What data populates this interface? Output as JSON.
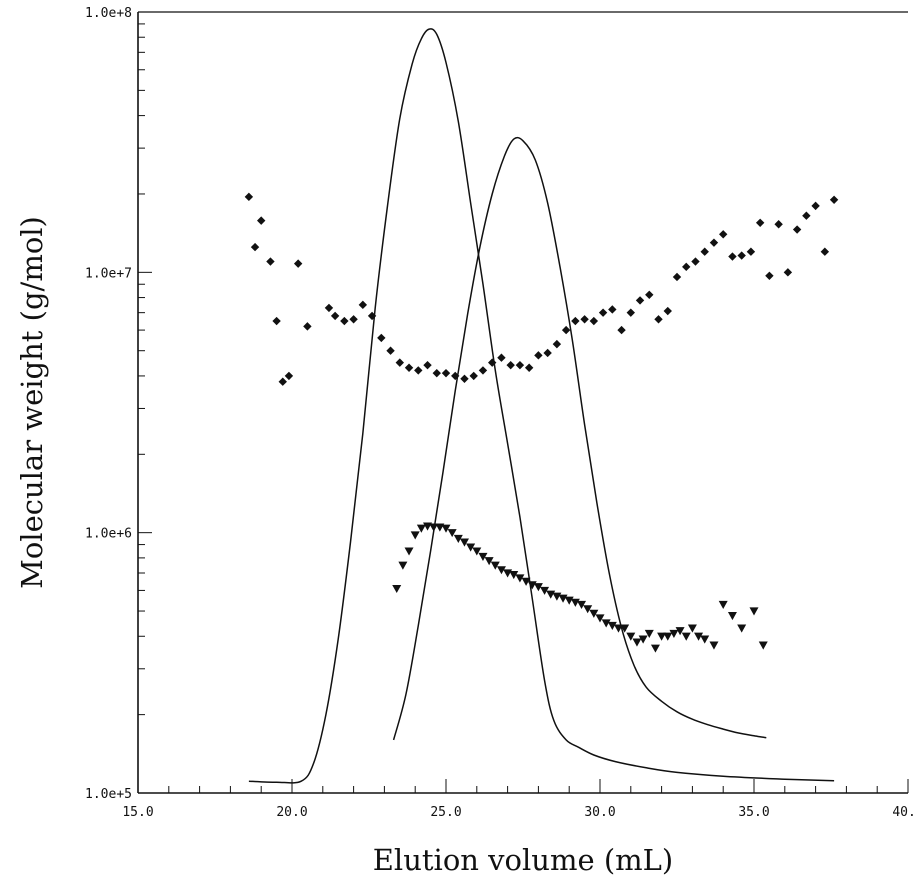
{
  "chart_data": {
    "type": "scatter",
    "title": "",
    "xlabel": "Elution volume (mL)",
    "ylabel": "Molecular weight (g/mol)",
    "xlim": [
      15.0,
      40.0
    ],
    "ylim": [
      100000,
      100000000
    ],
    "y_scale": "log",
    "grid": false,
    "legend": "none",
    "x_ticks": [
      15,
      20,
      25,
      30,
      35,
      40
    ],
    "x_tick_labels": [
      "15.0",
      "20.0",
      "25.0",
      "30.0",
      "35.0",
      "40.0"
    ],
    "y_ticks": [
      100000,
      1000000,
      10000000,
      100000000
    ],
    "y_tick_labels": [
      "1.0e+5",
      "1.0e+6",
      "1.0e+7",
      "1.0e+8"
    ],
    "series": [
      {
        "marker": "diamond",
        "x": [
          18.6,
          18.8,
          19.0,
          19.3,
          19.5,
          19.7,
          19.9,
          20.2,
          20.5,
          21.2,
          21.4,
          21.7,
          22.0,
          22.3,
          22.6,
          22.9,
          23.2,
          23.5,
          23.8,
          24.1,
          24.4,
          24.7,
          25.0,
          25.3,
          25.6,
          25.9,
          26.2,
          26.5,
          26.8,
          27.1,
          27.4,
          27.7,
          28.0,
          28.3,
          28.6,
          28.9,
          29.2,
          29.5,
          29.8,
          30.1,
          30.4,
          30.7,
          31.0,
          31.3,
          31.6,
          31.9,
          32.2,
          32.5,
          32.8,
          33.1,
          33.4,
          33.7,
          34.0,
          34.3,
          34.6,
          34.9,
          35.2,
          35.5,
          35.8,
          36.1,
          36.4,
          36.7,
          37.0,
          37.3,
          37.6
        ],
        "y": [
          19500000,
          12500000,
          15800000,
          11000000,
          6500000,
          3800000,
          4000000,
          10800000,
          6200000,
          7300000,
          6800000,
          6500000,
          6600000,
          7500000,
          6800000,
          5600000,
          5000000,
          4500000,
          4300000,
          4200000,
          4400000,
          4100000,
          4100000,
          4000000,
          3900000,
          4000000,
          4200000,
          4500000,
          4700000,
          4400000,
          4400000,
          4300000,
          4800000,
          4900000,
          5300000,
          6000000,
          6500000,
          6600000,
          6500000,
          7000000,
          7200000,
          6000000,
          7000000,
          7800000,
          8200000,
          6600000,
          7100000,
          9600000,
          10500000,
          11000000,
          12000000,
          13000000,
          14000000,
          11500000,
          11600000,
          12000000,
          15500000,
          9700000,
          15300000,
          10000000,
          14600000,
          16500000,
          18000000,
          12000000,
          19000000
        ]
      },
      {
        "marker": "triangle-down",
        "x": [
          23.4,
          23.6,
          23.8,
          24.0,
          24.2,
          24.4,
          24.6,
          24.8,
          25.0,
          25.2,
          25.4,
          25.6,
          25.8,
          26.0,
          26.2,
          26.4,
          26.6,
          26.8,
          27.0,
          27.2,
          27.4,
          27.6,
          27.8,
          28.0,
          28.2,
          28.4,
          28.6,
          28.8,
          29.0,
          29.2,
          29.4,
          29.6,
          29.8,
          30.0,
          30.2,
          30.4,
          30.6,
          30.8,
          31.0,
          31.2,
          31.4,
          31.6,
          31.8,
          32.0,
          32.2,
          32.4,
          32.6,
          32.8,
          33.0,
          33.2,
          33.4,
          33.7,
          34.0,
          34.3,
          34.6,
          35.0,
          35.3
        ],
        "y": [
          610000,
          750000,
          850000,
          980000,
          1040000,
          1060000,
          1050000,
          1050000,
          1040000,
          1000000,
          950000,
          920000,
          880000,
          850000,
          810000,
          780000,
          750000,
          720000,
          700000,
          690000,
          670000,
          650000,
          630000,
          620000,
          600000,
          580000,
          570000,
          560000,
          550000,
          540000,
          530000,
          510000,
          490000,
          470000,
          450000,
          440000,
          430000,
          430000,
          400000,
          380000,
          390000,
          410000,
          360000,
          400000,
          400000,
          410000,
          420000,
          400000,
          430000,
          400000,
          390000,
          370000,
          530000,
          480000,
          430000,
          500000,
          370000
        ]
      }
    ],
    "curves": [
      {
        "x": [
          18.6,
          19.5,
          20.3,
          20.7,
          21.1,
          21.5,
          21.9,
          22.3,
          22.7,
          23.1,
          23.5,
          23.9,
          24.2,
          24.45,
          24.7,
          25.0,
          25.4,
          25.8,
          26.2,
          26.6,
          27.0,
          27.4,
          27.8,
          28.2,
          28.5,
          28.9,
          29.3,
          29.8,
          30.5,
          31.5,
          32.5,
          34.0,
          36.0,
          37.6
        ],
        "y": [
          111000,
          110000,
          111000,
          130000,
          200000,
          390000,
          920000,
          2400000,
          7300000,
          18000000,
          39000000,
          63000000,
          79000000,
          86000000,
          82000000,
          64000000,
          38000000,
          18500000,
          9000000,
          4200000,
          2200000,
          1150000,
          560000,
          270000,
          190000,
          160000,
          150000,
          140000,
          132000,
          125000,
          120000,
          116000,
          113000,
          111500
        ]
      },
      {
        "x": [
          23.3,
          23.7,
          24.1,
          24.5,
          24.9,
          25.3,
          25.7,
          26.1,
          26.5,
          26.9,
          27.2,
          27.5,
          27.9,
          28.3,
          28.7,
          29.1,
          29.5,
          29.9,
          30.3,
          30.7,
          31.1,
          31.5,
          32.0,
          32.5,
          33.0,
          33.5,
          34.0,
          34.5,
          35.0,
          35.4
        ],
        "y": [
          160000,
          240000,
          440000,
          850000,
          1700000,
          3500000,
          6900000,
          12500000,
          20000000,
          28000000,
          32500000,
          32000000,
          27000000,
          18500000,
          10500000,
          5500000,
          2600000,
          1300000,
          700000,
          430000,
          310000,
          255000,
          225000,
          205000,
          192000,
          183000,
          176000,
          170000,
          166000,
          163000
        ]
      }
    ]
  }
}
